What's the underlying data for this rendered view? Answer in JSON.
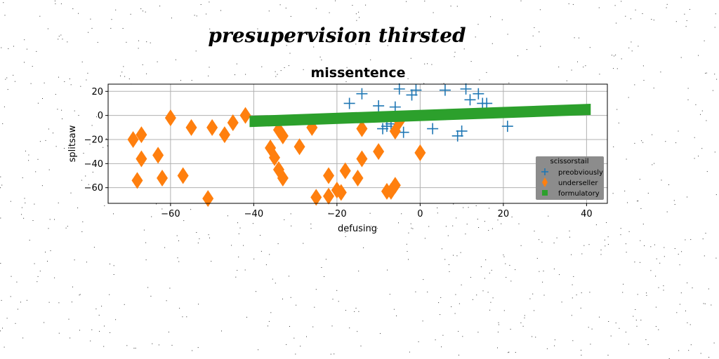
{
  "figure": {
    "suptitle": "presupervision thirsted"
  },
  "chart_data": {
    "type": "scatter",
    "title": "missentence",
    "xlabel": "defusing",
    "ylabel": "splitsaw",
    "xlim": [
      -75,
      45
    ],
    "ylim": [
      -73,
      26
    ],
    "xticks": [
      -60,
      -40,
      -20,
      0,
      20,
      40
    ],
    "yticks": [
      -60,
      -40,
      -20,
      0,
      20
    ],
    "xtick_labels": [
      "−60",
      "−40",
      "−20",
      "0",
      "20",
      "40"
    ],
    "ytick_labels": [
      "−60",
      "−40",
      "−20",
      "0",
      "20"
    ],
    "grid": true,
    "legend": {
      "title": "scissorstail",
      "placement": "lower-right"
    },
    "series": [
      {
        "name": "preobviously",
        "marker": "plus",
        "color": "#1f77b4",
        "points": [
          [
            -17,
            10
          ],
          [
            -14,
            18
          ],
          [
            -10,
            8
          ],
          [
            -9,
            -11
          ],
          [
            -8,
            -9
          ],
          [
            -7,
            -7
          ],
          [
            -6,
            7
          ],
          [
            -5,
            22
          ],
          [
            -4,
            -14
          ],
          [
            -2,
            17
          ],
          [
            -1,
            21
          ],
          [
            3,
            -11
          ],
          [
            6,
            21
          ],
          [
            9,
            -17
          ],
          [
            10,
            -13
          ],
          [
            11,
            22
          ],
          [
            12,
            13
          ],
          [
            14,
            18
          ],
          [
            15,
            10
          ],
          [
            16,
            10
          ],
          [
            21,
            -9
          ]
        ]
      },
      {
        "name": "underseller",
        "marker": "diamond",
        "color": "#ff7f0e",
        "points": [
          [
            -69,
            -20
          ],
          [
            -68,
            -54
          ],
          [
            -67,
            -36
          ],
          [
            -67,
            -16
          ],
          [
            -63,
            -33
          ],
          [
            -62,
            -52
          ],
          [
            -60,
            -2
          ],
          [
            -57,
            -50
          ],
          [
            -55,
            -10
          ],
          [
            -51,
            -69
          ],
          [
            -50,
            -10
          ],
          [
            -47,
            -16
          ],
          [
            -45,
            -6
          ],
          [
            -42,
            0
          ],
          [
            -36,
            -27
          ],
          [
            -35,
            -35
          ],
          [
            -34,
            -45
          ],
          [
            -34,
            -12
          ],
          [
            -33,
            -52
          ],
          [
            -33,
            -17
          ],
          [
            -29,
            -26
          ],
          [
            -26,
            -10
          ],
          [
            -25,
            -68
          ],
          [
            -22,
            -50
          ],
          [
            -22,
            -67
          ],
          [
            -20,
            -62
          ],
          [
            -19,
            -64
          ],
          [
            -18,
            -46
          ],
          [
            -15,
            -52
          ],
          [
            -14,
            -36
          ],
          [
            -14,
            -11
          ],
          [
            -10,
            -30
          ],
          [
            -8,
            -63
          ],
          [
            -7,
            -63
          ],
          [
            -6,
            -58
          ],
          [
            -6,
            -13
          ],
          [
            -5,
            -5
          ],
          [
            0,
            -31
          ]
        ]
      },
      {
        "name": "formulatory",
        "marker": "square",
        "color": "#2ca02c",
        "line": {
          "x": [
            -41,
            41
          ],
          "y": [
            -5,
            5
          ]
        }
      }
    ]
  }
}
